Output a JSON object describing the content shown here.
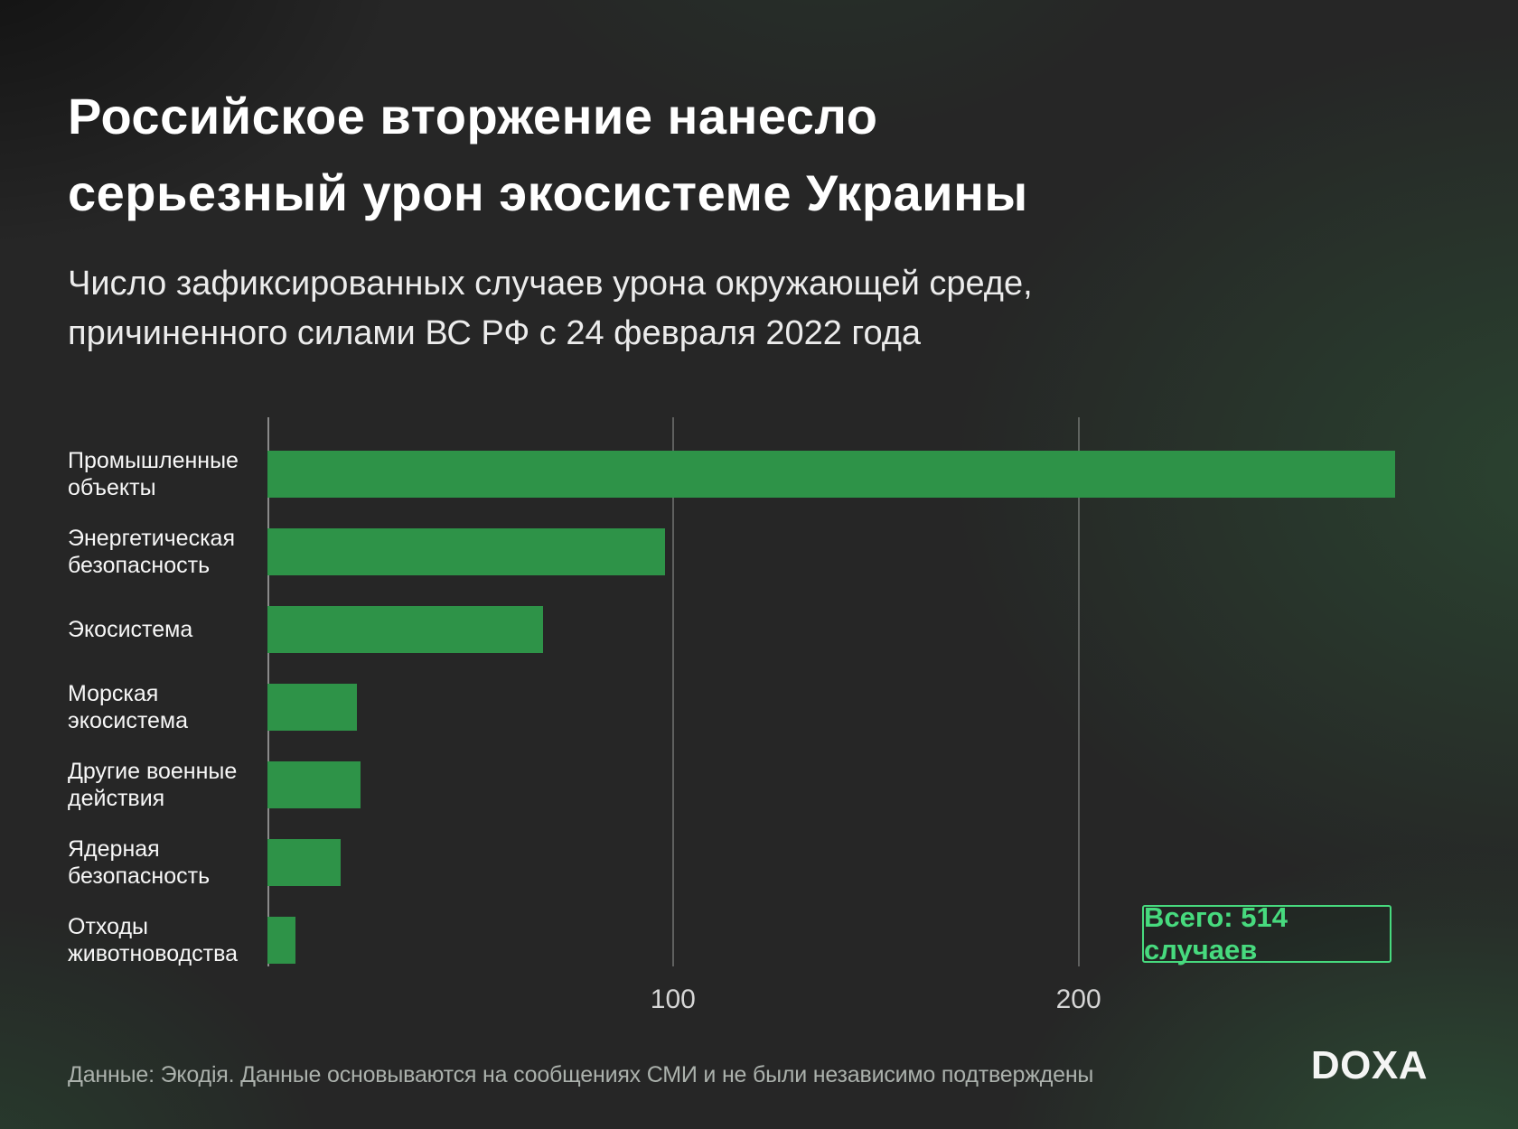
{
  "header": {
    "title_line1": "Российское вторжение нанесло",
    "title_line2": "серьезный урон экосистеме Украины",
    "subtitle_line1": "Число зафиксированных случаев урона окружающей среде,",
    "subtitle_line2": "причиненного силами ВС РФ с 24 февраля 2022 года"
  },
  "badge": {
    "label": "Всего: 514 случаев"
  },
  "footer": {
    "source": "Данные: Экодія. Данные основываются на сообщениях СМИ и не были независимо подтверждены",
    "logo": "DOXA"
  },
  "colors": {
    "background": "#262626",
    "bar_green": "#2e9348",
    "accent_green": "#47da7e",
    "title_text": "#ffffff",
    "label_text": "#f7f7f7",
    "tick_text": "#d6d6d6",
    "muted_text": "#abb1ac"
  },
  "chart_data": {
    "type": "bar",
    "orientation": "horizontal",
    "title": "Российское вторжение нанесло серьезный урон экосистеме Украины",
    "subtitle": "Число зафиксированных случаев урона окружающей среде, причиненного силами ВС РФ с 24 февраля 2022 года",
    "categories": [
      "Промышленные объекты",
      "Энергетическая безопасность",
      "Экосистема",
      "Морская экосистема",
      "Другие военные действия",
      "Ядерная безопасность",
      "Отходы животноводства"
    ],
    "values": [
      278,
      98,
      68,
      22,
      23,
      18,
      7
    ],
    "total": 514,
    "total_label": "Всего: 514 случаев",
    "xticks": [
      100,
      200
    ],
    "xlim": [
      0,
      295
    ],
    "grid": "vertical",
    "legend": "none",
    "source": "Экодія"
  }
}
